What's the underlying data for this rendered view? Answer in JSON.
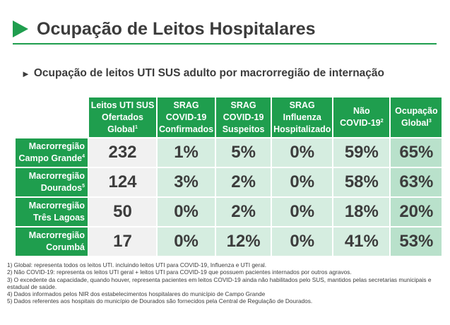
{
  "header": {
    "title": "Ocupação de Leitos Hospitalares",
    "subtitle": "Ocupação de leitos UTI SUS adulto por macrorregião de internação",
    "accent_color": "#1f9e4e",
    "title_icon": "play-triangle-icon",
    "subtitle_icon": "small-triangle-icon"
  },
  "table": {
    "columns": [
      {
        "lines": [
          "Leitos UTI SUS",
          "Ofertados",
          "Global"
        ],
        "sup": "1"
      },
      {
        "lines": [
          "SRAG",
          "COVID-19",
          "Confirmados"
        ],
        "sup": ""
      },
      {
        "lines": [
          "SRAG",
          "COVID-19",
          "Suspeitos"
        ],
        "sup": ""
      },
      {
        "lines": [
          "SRAG",
          "Influenza",
          "Hospitalizado"
        ],
        "sup": ""
      },
      {
        "lines": [
          "Não",
          "COVID-19"
        ],
        "sup": "2"
      },
      {
        "lines": [
          "Ocupação",
          "Global"
        ],
        "sup": "3"
      }
    ],
    "rows": [
      {
        "lines": [
          "Macrorregião",
          "Campo Grande"
        ],
        "sup": "4",
        "values": [
          "232",
          "1%",
          "5%",
          "0%",
          "59%",
          "65%"
        ]
      },
      {
        "lines": [
          "Macrorregião",
          "Dourados"
        ],
        "sup": "5",
        "values": [
          "124",
          "3%",
          "2%",
          "0%",
          "58%",
          "63%"
        ]
      },
      {
        "lines": [
          "Macrorregião",
          "Três Lagoas"
        ],
        "sup": "",
        "values": [
          "50",
          "0%",
          "2%",
          "0%",
          "18%",
          "20%"
        ]
      },
      {
        "lines": [
          "Macrorregião",
          "Corumbá"
        ],
        "sup": "",
        "values": [
          "17",
          "0%",
          "12%",
          "0%",
          "41%",
          "53%"
        ]
      }
    ]
  },
  "footnotes": [
    "1) Global: representa todos os leitos UTI. incluindo leitos UTI para COVID-19, Influenza e UTI geral.",
    "2) Não COVID-19: representa os leitos UTI geral + leitos UTI para COVID-19 que possuem pacientes internados por outros agravos.",
    "3) O excedente da capacidade, quando houver, representa pacientes em leitos COVID-19 ainda não habilitados pelo SUS, mantidos pelas secretarias municipais e estadual de saúde.",
    "4) Dados informados pelos NIR dos estabelecimentos hospitalares do município de Campo Grande",
    "5) Dados referentes aos hospitais do município de Dourados são fornecidos pela Central de Regulação de Dourados."
  ]
}
